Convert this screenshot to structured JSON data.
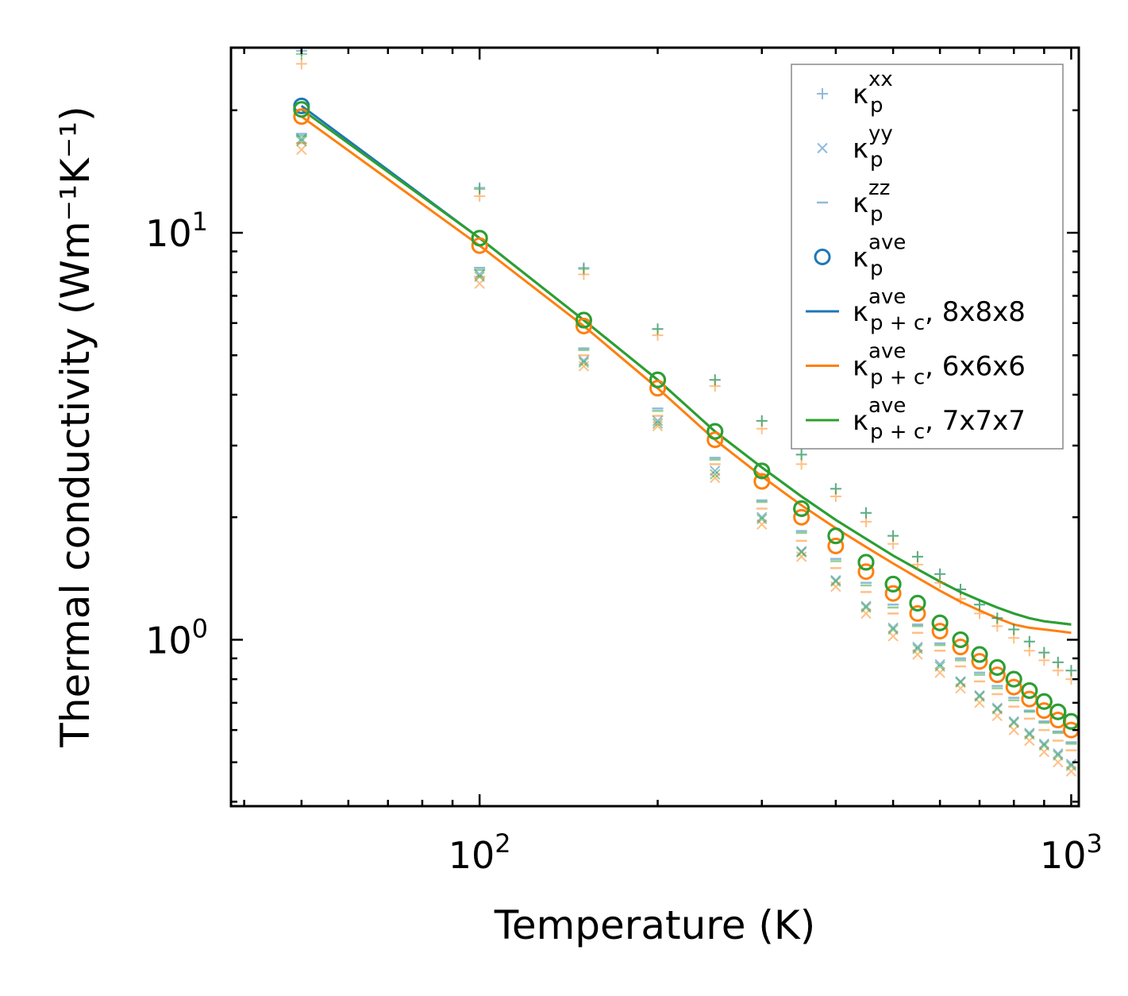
{
  "chart_data": {
    "type": "scatter",
    "title": "",
    "xlabel": "Temperature (K)",
    "ylabel": "Thermal conductivity (Wm⁻¹K⁻¹)",
    "xscale": "log",
    "yscale": "log",
    "xlim": [
      38,
      1030
    ],
    "ylim": [
      0.39,
      28.5
    ],
    "x_ticks": [
      {
        "value": 100,
        "base": "10",
        "exp": "2"
      },
      {
        "value": 1000,
        "base": "10",
        "exp": "3"
      }
    ],
    "y_ticks": [
      {
        "value": 1,
        "base": "10",
        "exp": "0"
      },
      {
        "value": 10,
        "base": "10",
        "exp": "1"
      }
    ],
    "legend_position": "upper-right",
    "colors": {
      "blue": "#1f77b4",
      "orange": "#ff7f0e",
      "green": "#2ca02c"
    },
    "legend": [
      {
        "marker": "plus",
        "base": "κ",
        "sub": "p",
        "sup": "xx",
        "suffix": ""
      },
      {
        "marker": "x",
        "base": "κ",
        "sub": "p",
        "sup": "yy",
        "suffix": ""
      },
      {
        "marker": "dash",
        "base": "κ",
        "sub": "p",
        "sup": "zz",
        "suffix": ""
      },
      {
        "marker": "circle",
        "base": "κ",
        "sub": "p",
        "sup": "ave",
        "suffix": ""
      },
      {
        "marker": "line",
        "color": "blue",
        "base": "κ",
        "sub": "p + c",
        "sup": "ave",
        "suffix": ", 8x8x8"
      },
      {
        "marker": "line",
        "color": "orange",
        "base": "κ",
        "sub": "p + c",
        "sup": "ave",
        "suffix": ", 6x6x6"
      },
      {
        "marker": "line",
        "color": "green",
        "base": "κ",
        "sub": "p + c",
        "sup": "ave",
        "suffix": ", 7x7x7"
      }
    ],
    "temperatures": [
      50,
      100,
      150,
      200,
      250,
      300,
      350,
      400,
      450,
      500,
      550,
      600,
      650,
      700,
      750,
      800,
      850,
      900,
      950,
      1000
    ],
    "series": [
      {
        "name": "8x8x8",
        "color": "blue",
        "kxx": [
          28.0,
          12.9,
          8.2,
          5.8,
          4.35,
          3.45,
          2.85,
          2.35,
          2.05,
          1.8,
          1.6,
          1.45,
          1.33,
          1.22,
          1.13,
          1.06,
          0.99,
          0.93,
          0.88,
          0.84
        ],
        "kyy": [
          17.0,
          7.9,
          4.85,
          3.45,
          2.6,
          2.0,
          1.65,
          1.4,
          1.21,
          1.07,
          0.96,
          0.87,
          0.79,
          0.73,
          0.68,
          0.63,
          0.59,
          0.555,
          0.525,
          0.495
        ],
        "kzz": [
          17.5,
          8.2,
          5.2,
          3.7,
          2.8,
          2.2,
          1.85,
          1.58,
          1.38,
          1.22,
          1.09,
          0.98,
          0.9,
          0.83,
          0.77,
          0.72,
          0.67,
          0.63,
          0.595,
          0.56
        ],
        "kave": [
          20.5,
          9.7,
          6.1,
          4.35,
          3.25,
          2.6,
          2.1,
          1.8,
          1.55,
          1.37,
          1.23,
          1.1,
          1.0,
          0.92,
          0.855,
          0.8,
          0.75,
          0.705,
          0.665,
          0.63
        ],
        "ktotal": [
          20.5,
          9.7,
          6.1,
          4.35,
          3.25,
          2.65,
          2.25,
          1.97,
          1.77,
          1.61,
          1.49,
          1.39,
          1.31,
          1.25,
          1.2,
          1.16,
          1.13,
          1.11,
          1.1,
          1.09
        ]
      },
      {
        "name": "6x6x6",
        "color": "orange",
        "kxx": [
          26.0,
          12.3,
          7.9,
          5.6,
          4.2,
          3.3,
          2.7,
          2.25,
          1.95,
          1.72,
          1.53,
          1.38,
          1.26,
          1.16,
          1.08,
          1.01,
          0.94,
          0.89,
          0.84,
          0.8
        ],
        "kyy": [
          16.0,
          7.5,
          4.7,
          3.35,
          2.5,
          1.92,
          1.6,
          1.35,
          1.16,
          1.02,
          0.92,
          0.83,
          0.76,
          0.7,
          0.65,
          0.6,
          0.565,
          0.53,
          0.5,
          0.475
        ],
        "kzz": [
          16.6,
          7.8,
          5.0,
          3.55,
          2.7,
          2.1,
          1.75,
          1.5,
          1.31,
          1.16,
          1.04,
          0.94,
          0.86,
          0.79,
          0.735,
          0.685,
          0.64,
          0.6,
          0.565,
          0.535
        ],
        "kave": [
          19.3,
          9.3,
          5.9,
          4.15,
          3.1,
          2.45,
          2.0,
          1.7,
          1.47,
          1.3,
          1.16,
          1.05,
          0.96,
          0.885,
          0.82,
          0.765,
          0.715,
          0.67,
          0.635,
          0.6
        ],
        "ktotal": [
          19.3,
          9.3,
          5.9,
          4.15,
          3.1,
          2.52,
          2.14,
          1.88,
          1.69,
          1.54,
          1.42,
          1.32,
          1.24,
          1.18,
          1.13,
          1.09,
          1.07,
          1.06,
          1.05,
          1.04
        ]
      },
      {
        "name": "7x7x7",
        "color": "green",
        "kxx": [
          27.5,
          12.8,
          8.15,
          5.8,
          4.35,
          3.45,
          2.85,
          2.35,
          2.05,
          1.8,
          1.6,
          1.45,
          1.33,
          1.22,
          1.13,
          1.06,
          0.99,
          0.93,
          0.88,
          0.84
        ],
        "kyy": [
          16.8,
          7.8,
          4.8,
          3.4,
          2.55,
          1.98,
          1.64,
          1.39,
          1.2,
          1.06,
          0.95,
          0.86,
          0.785,
          0.725,
          0.675,
          0.625,
          0.585,
          0.55,
          0.52,
          0.49
        ],
        "kzz": [
          17.3,
          8.1,
          5.15,
          3.65,
          2.77,
          2.18,
          1.83,
          1.56,
          1.36,
          1.2,
          1.08,
          0.97,
          0.89,
          0.82,
          0.76,
          0.71,
          0.665,
          0.625,
          0.59,
          0.555
        ],
        "kave": [
          20.1,
          9.7,
          6.1,
          4.35,
          3.25,
          2.6,
          2.1,
          1.8,
          1.55,
          1.37,
          1.23,
          1.1,
          1.0,
          0.92,
          0.855,
          0.8,
          0.75,
          0.705,
          0.665,
          0.63
        ],
        "ktotal": [
          20.1,
          9.7,
          6.1,
          4.35,
          3.25,
          2.65,
          2.25,
          1.97,
          1.77,
          1.61,
          1.49,
          1.39,
          1.31,
          1.25,
          1.2,
          1.16,
          1.13,
          1.11,
          1.1,
          1.09
        ]
      }
    ]
  }
}
